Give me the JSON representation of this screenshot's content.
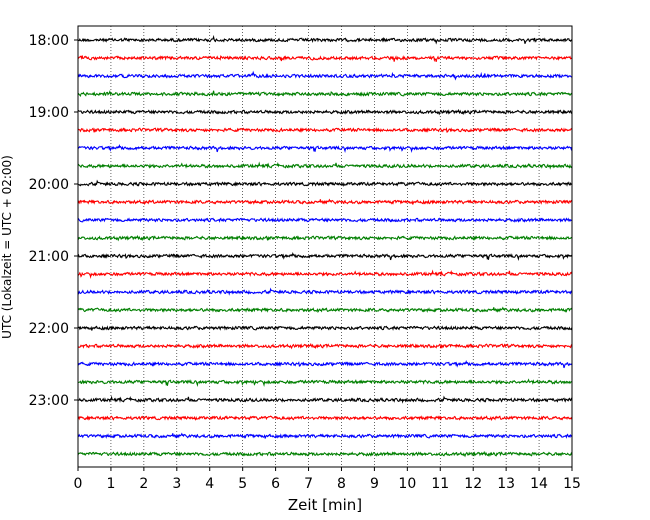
{
  "chart_data": {
    "type": "line",
    "title": "",
    "xlabel": "Zeit  [min]",
    "ylabel": "UTC (Lokalzeit = UTC + 02:00)",
    "xlim": [
      0,
      15
    ],
    "x_ticks": [
      0,
      1,
      2,
      3,
      4,
      5,
      6,
      7,
      8,
      9,
      10,
      11,
      12,
      13,
      14,
      15
    ],
    "ylim_hours": [
      18.0,
      23.0
    ],
    "y_tick_labels": [
      "18:00",
      "19:00",
      "20:00",
      "21:00",
      "22:00",
      "23:00"
    ],
    "grid": "vertical dotted",
    "trace_interval_min": 15,
    "trace_colors": [
      "#000000",
      "#ff0000",
      "#0000ff",
      "#007f00"
    ],
    "traces": [
      {
        "start": "18:00",
        "color": "#000000"
      },
      {
        "start": "18:15",
        "color": "#ff0000"
      },
      {
        "start": "18:30",
        "color": "#0000ff"
      },
      {
        "start": "18:45",
        "color": "#007f00"
      },
      {
        "start": "19:00",
        "color": "#000000"
      },
      {
        "start": "19:15",
        "color": "#ff0000"
      },
      {
        "start": "19:30",
        "color": "#0000ff"
      },
      {
        "start": "19:45",
        "color": "#007f00"
      },
      {
        "start": "20:00",
        "color": "#000000"
      },
      {
        "start": "20:15",
        "color": "#ff0000"
      },
      {
        "start": "20:30",
        "color": "#0000ff"
      },
      {
        "start": "20:45",
        "color": "#007f00"
      },
      {
        "start": "21:00",
        "color": "#000000"
      },
      {
        "start": "21:15",
        "color": "#ff0000"
      },
      {
        "start": "21:30",
        "color": "#0000ff"
      },
      {
        "start": "21:45",
        "color": "#007f00"
      },
      {
        "start": "22:00",
        "color": "#000000"
      },
      {
        "start": "22:15",
        "color": "#ff0000"
      },
      {
        "start": "22:30",
        "color": "#0000ff"
      },
      {
        "start": "22:45",
        "color": "#007f00"
      },
      {
        "start": "23:00",
        "color": "#000000"
      },
      {
        "start": "23:15",
        "color": "#ff0000"
      },
      {
        "start": "23:30",
        "color": "#0000ff"
      },
      {
        "start": "23:45",
        "color": "#007f00"
      }
    ]
  }
}
